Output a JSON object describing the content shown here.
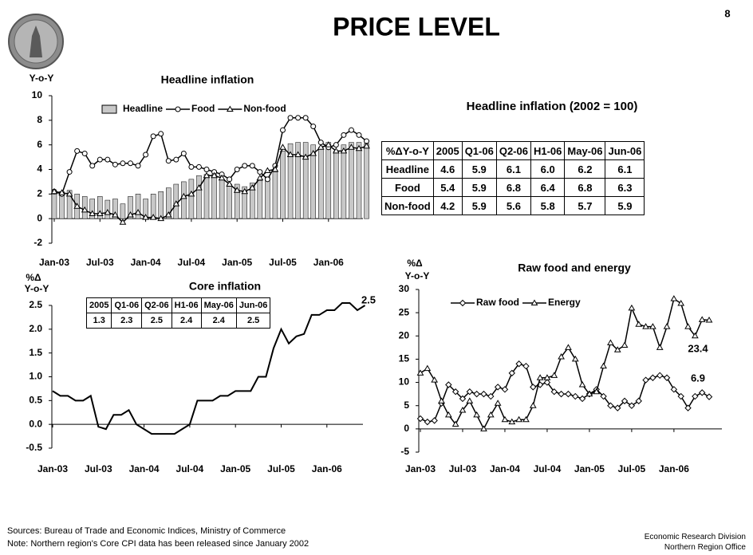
{
  "title": "PRICE LEVEL",
  "page_number": "8",
  "chart_data": [
    {
      "type": "combo",
      "title": "Headline inflation",
      "y_label": [
        "Y-o-Y"
      ],
      "categories": [
        "Jan-03",
        null,
        null,
        null,
        null,
        null,
        "Jul-03",
        null,
        null,
        null,
        null,
        null,
        "Jan-04",
        null,
        null,
        null,
        null,
        null,
        "Jul-04",
        null,
        null,
        null,
        null,
        null,
        "Jan-05",
        null,
        null,
        null,
        null,
        null,
        "Jul-05",
        null,
        null,
        null,
        null,
        null,
        "Jan-06",
        null,
        null,
        null,
        null,
        null
      ],
      "series": [
        {
          "name": "Headline",
          "kind": "bar",
          "color": "#c8c8c8",
          "values": [
            2.0,
            2.2,
            2.3,
            2.0,
            1.8,
            1.6,
            1.8,
            1.5,
            1.6,
            1.2,
            1.8,
            2.0,
            1.6,
            2.0,
            2.2,
            2.5,
            2.8,
            3.0,
            3.2,
            3.5,
            3.6,
            3.6,
            3.2,
            2.8,
            2.8,
            2.6,
            2.9,
            3.1,
            3.4,
            3.8,
            5.5,
            6.1,
            6.2,
            6.2,
            6.0,
            5.8,
            6.2,
            5.5,
            6.0,
            6.2,
            6.2,
            6.1
          ]
        },
        {
          "name": "Food",
          "kind": "line",
          "marker": "circle",
          "color": "#000000",
          "values": [
            2.2,
            2.0,
            3.8,
            5.5,
            5.3,
            4.3,
            4.8,
            4.8,
            4.4,
            4.5,
            4.5,
            4.3,
            5.2,
            6.7,
            6.9,
            4.7,
            4.8,
            5.3,
            4.2,
            4.2,
            4.0,
            3.8,
            3.6,
            3.2,
            4.0,
            4.3,
            4.3,
            3.8,
            3.2,
            4.3,
            7.2,
            8.2,
            8.2,
            8.2,
            7.5,
            6.2,
            5.8,
            6.0,
            6.8,
            7.2,
            6.8,
            6.3
          ]
        },
        {
          "name": "Non-food",
          "kind": "line",
          "marker": "triangle",
          "color": "#000000",
          "values": [
            2.2,
            2.1,
            2.0,
            1.0,
            0.7,
            0.4,
            0.4,
            0.5,
            0.3,
            -0.3,
            0.3,
            0.5,
            0.1,
            0.1,
            0.0,
            0.3,
            1.2,
            1.8,
            2.0,
            2.5,
            3.5,
            3.5,
            3.3,
            2.8,
            2.3,
            2.2,
            2.5,
            3.3,
            3.9,
            4.0,
            5.8,
            5.2,
            5.2,
            5.0,
            5.3,
            5.8,
            6.0,
            5.5,
            5.5,
            5.8,
            5.7,
            5.9
          ]
        }
      ],
      "ylim": [
        -2,
        10
      ],
      "yticks": [
        -2,
        0,
        2,
        4,
        6,
        8,
        10
      ],
      "legend": "top"
    },
    {
      "type": "line",
      "title": "Core inflation",
      "y_label": [
        "%Δ",
        "Y-o-Y"
      ],
      "categories": [
        "Jan-03",
        null,
        null,
        null,
        null,
        null,
        "Jul-03",
        null,
        null,
        null,
        null,
        null,
        "Jan-04",
        null,
        null,
        null,
        null,
        null,
        "Jul-04",
        null,
        null,
        null,
        null,
        null,
        "Jan-05",
        null,
        null,
        null,
        null,
        null,
        "Jul-05",
        null,
        null,
        null,
        null,
        null,
        "Jan-06",
        null,
        null,
        null,
        null,
        null
      ],
      "series": [
        {
          "kind": "line",
          "marker": "none",
          "color": "#000000",
          "values": [
            0.7,
            0.6,
            0.6,
            0.5,
            0.5,
            0.6,
            -0.05,
            -0.1,
            0.2,
            0.2,
            0.3,
            0.0,
            -0.1,
            -0.2,
            -0.2,
            -0.2,
            -0.2,
            -0.1,
            0.0,
            0.5,
            0.5,
            0.5,
            0.6,
            0.6,
            0.7,
            0.7,
            0.7,
            1.0,
            1.0,
            1.6,
            2.0,
            1.7,
            1.85,
            1.9,
            2.3,
            2.3,
            2.4,
            2.4,
            2.55,
            2.55,
            2.4,
            2.5
          ]
        }
      ],
      "ylim": [
        -0.5,
        2.5
      ],
      "yticks": [
        -0.5,
        {
          "value": 0,
          "label": "0.0"
        },
        0.5,
        {
          "value": 1,
          "label": "1.0"
        },
        1.5,
        {
          "value": 2,
          "label": "2.0"
        },
        2.5
      ],
      "annotations": [
        "2.5"
      ]
    },
    {
      "type": "line",
      "title": "Raw food and energy",
      "y_label": [
        "%Δ",
        "Y-o-Y"
      ],
      "categories": [
        "Jan-03",
        null,
        null,
        null,
        null,
        null,
        "Jul-03",
        null,
        null,
        null,
        null,
        null,
        "Jan-04",
        null,
        null,
        null,
        null,
        null,
        "Jul-04",
        null,
        null,
        null,
        null,
        null,
        "Jan-05",
        null,
        null,
        null,
        null,
        null,
        "Jul-05",
        null,
        null,
        null,
        null,
        null,
        "Jan-06",
        null,
        null,
        null,
        null,
        null
      ],
      "series": [
        {
          "name": "Raw food",
          "kind": "line",
          "marker": "diamond",
          "color": "#000000",
          "values": [
            2.2,
            1.5,
            1.8,
            5.5,
            9.5,
            8.0,
            6.5,
            8.0,
            7.5,
            7.5,
            7.0,
            9.0,
            8.5,
            12.0,
            14.0,
            13.5,
            9.0,
            9.5,
            10.0,
            8.0,
            7.5,
            7.5,
            7.0,
            6.5,
            7.5,
            8.5,
            7.0,
            5.0,
            4.5,
            6.0,
            5.0,
            6.0,
            10.5,
            11.0,
            11.5,
            11.0,
            8.5,
            7.0,
            4.5,
            7.0,
            7.8,
            6.9
          ]
        },
        {
          "name": "Energy",
          "kind": "line",
          "marker": "triangle",
          "color": "#000000",
          "values": [
            12.0,
            13.0,
            10.5,
            6.0,
            3.0,
            1.0,
            4.0,
            6.0,
            3.0,
            0.0,
            3.0,
            5.5,
            2.0,
            1.5,
            2.0,
            2.0,
            5.0,
            11.0,
            11.0,
            11.5,
            15.5,
            17.5,
            15.0,
            9.5,
            7.5,
            8.0,
            13.5,
            18.5,
            17.0,
            18.0,
            26.0,
            22.5,
            22.0,
            22.0,
            17.5,
            22.0,
            28.0,
            27.0,
            22.0,
            20.0,
            23.5,
            23.4
          ]
        }
      ],
      "ylim": [
        -5,
        30
      ],
      "yticks": [
        -5,
        0,
        5,
        10,
        15,
        20,
        25,
        30
      ],
      "legend": "top",
      "annotations": [
        "23.4",
        "6.9"
      ]
    }
  ],
  "tables": [
    {
      "title": "Headline inflation (2002 = 100)",
      "header": [
        "%ΔY-o-Y",
        "2005",
        "Q1-06",
        "Q2-06",
        "H1-06",
        "May-06",
        "Jun-06"
      ],
      "rows": [
        [
          "Headline",
          "4.6",
          "5.9",
          "6.1",
          "6.0",
          "6.2",
          "6.1"
        ],
        [
          "Food",
          "5.4",
          "5.9",
          "6.8",
          "6.4",
          "6.8",
          "6.3"
        ],
        [
          "Non-food",
          "4.2",
          "5.9",
          "5.6",
          "5.8",
          "5.7",
          "5.9"
        ]
      ]
    },
    {
      "header": [
        "2005",
        "Q1-06",
        "Q2-06",
        "H1-06",
        "May-06",
        "Jun-06"
      ],
      "rows": [
        [
          "1.3",
          "2.3",
          "2.5",
          "2.4",
          "2.4",
          "2.5"
        ]
      ]
    }
  ],
  "footer": {
    "sources": "Sources: Bureau of Trade and Economic Indices, Ministry of Commerce",
    "note": "Note: Northern region's Core CPI data has been released since January 2002",
    "division": "Economic Research Division",
    "office": "Northern Region Office"
  }
}
